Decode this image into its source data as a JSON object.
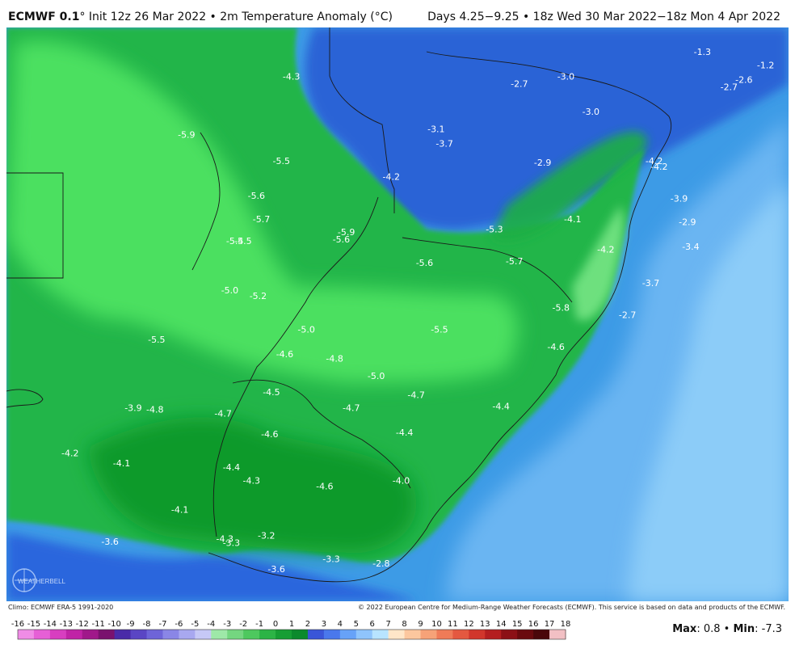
{
  "header": {
    "model": "ECMWF 0.1",
    "init": "° Init 12z 26 Mar 2022 • 2m Temperature Anomaly (°C)",
    "valid": "Days 4.25−9.25 • 18z Wed 30 Mar 2022−18z Mon 4 Apr 2022"
  },
  "footer": {
    "climo": "Climo: ECMWF ERA-5 1991-2020",
    "copyright": "© 2022 European Centre for Medium-Range Weather Forecasts (ECMWF). This service is based on data and products of the ECMWF.",
    "max_label": "Max",
    "max_value": ": 0.8 • ",
    "min_label": "Min",
    "min_value": ": -7.3"
  },
  "logo": {
    "text": "WEATHERBELL",
    "icon": "globe-icon"
  },
  "legend": {
    "ticks": [
      "-16",
      "-15",
      "-14",
      "-13",
      "-12",
      "-11",
      "-10",
      "-9",
      "-8",
      "-7",
      "-6",
      "-5",
      "-4",
      "-3",
      "-2",
      "-1",
      "0",
      "1",
      "2",
      "3",
      "4",
      "5",
      "6",
      "7",
      "8",
      "9",
      "10",
      "11",
      "12",
      "13",
      "14",
      "15",
      "16",
      "17",
      "18"
    ],
    "colors": [
      "#f08ce6",
      "#e65fd6",
      "#d83ec0",
      "#c023a6",
      "#a0188a",
      "#7a126e",
      "#4a2ba8",
      "#5a46c4",
      "#6e64d8",
      "#8a86e6",
      "#a8a8f0",
      "#c6c8f6",
      "#9ee8a8",
      "#74d680",
      "#4ec85e",
      "#2cb446",
      "#169e34",
      "#0b8a2c",
      "#3a55d8",
      "#4a78ec",
      "#67a2f8",
      "#8fc4fc",
      "#b8e4ff",
      "#ffe6c8",
      "#fcc79e",
      "#f6a278",
      "#ef7b58",
      "#e45840",
      "#d1362c",
      "#b41e20",
      "#8c1016",
      "#6a0a0e",
      "#4a070a",
      "#f2c0c4"
    ]
  },
  "map": {
    "background": "#3d9be6",
    "labels": [
      {
        "value": "-4.3",
        "lon": -58.4,
        "lat": -15.1
      },
      {
        "value": "-5.9",
        "lon": -64.7,
        "lat": -19.1
      },
      {
        "value": "-5.5",
        "lon": -59.0,
        "lat": -20.9
      },
      {
        "value": "-5.6",
        "lon": -60.5,
        "lat": -23.3
      },
      {
        "value": "-5.7",
        "lon": -60.2,
        "lat": -24.9
      },
      {
        "value": "-5.4",
        "lon": -61.8,
        "lat": -26.4
      },
      {
        "value": "-5.5",
        "lon": -61.3,
        "lat": -26.4
      },
      {
        "value": "-5.0",
        "lon": -62.1,
        "lat": -29.8
      },
      {
        "value": "-5.2",
        "lon": -60.4,
        "lat": -30.2
      },
      {
        "value": "-5.5",
        "lon": -66.5,
        "lat": -33.2
      },
      {
        "value": "-5.9",
        "lon": -55.1,
        "lat": -25.8
      },
      {
        "value": "-5.6",
        "lon": -55.4,
        "lat": -26.3
      },
      {
        "value": "-4.2",
        "lon": -52.4,
        "lat": -22.0
      },
      {
        "value": "-3.1",
        "lon": -49.7,
        "lat": -18.7
      },
      {
        "value": "-3.7",
        "lon": -49.2,
        "lat": -19.7
      },
      {
        "value": "-2.7",
        "lon": -44.7,
        "lat": -15.6
      },
      {
        "value": "-3.0",
        "lon": -41.9,
        "lat": -15.1
      },
      {
        "value": "-3.0",
        "lon": -40.4,
        "lat": -17.5
      },
      {
        "value": "-2.9",
        "lon": -43.3,
        "lat": -21.0
      },
      {
        "value": "-1.3",
        "lon": -33.7,
        "lat": -13.4
      },
      {
        "value": "-1.2",
        "lon": -29.9,
        "lat": -14.3
      },
      {
        "value": "-2.6",
        "lon": -31.2,
        "lat": -15.3
      },
      {
        "value": "-2.7",
        "lon": -32.1,
        "lat": -15.8
      },
      {
        "value": "-4.2",
        "lon": -36.6,
        "lat": -20.9
      },
      {
        "value": "-4.2",
        "lon": -36.3,
        "lat": -21.3
      },
      {
        "value": "-3.9",
        "lon": -35.1,
        "lat": -23.5
      },
      {
        "value": "-2.9",
        "lon": -34.6,
        "lat": -25.1
      },
      {
        "value": "-4.1",
        "lon": -41.5,
        "lat": -24.9
      },
      {
        "value": "-5.3",
        "lon": -46.2,
        "lat": -25.6
      },
      {
        "value": "-4.2",
        "lon": -39.5,
        "lat": -27.0
      },
      {
        "value": "-3.4",
        "lon": -34.4,
        "lat": -26.8
      },
      {
        "value": "-5.6",
        "lon": -50.4,
        "lat": -27.9
      },
      {
        "value": "-5.7",
        "lon": -45.0,
        "lat": -27.8
      },
      {
        "value": "-3.7",
        "lon": -36.8,
        "lat": -29.3
      },
      {
        "value": "-5.8",
        "lon": -42.2,
        "lat": -31.0
      },
      {
        "value": "-2.7",
        "lon": -38.2,
        "lat": -31.5
      },
      {
        "value": "-5.5",
        "lon": -49.5,
        "lat": -32.5
      },
      {
        "value": "-5.0",
        "lon": -57.5,
        "lat": -32.5
      },
      {
        "value": "-4.6",
        "lon": -42.5,
        "lat": -33.7
      },
      {
        "value": "-4.6",
        "lon": -58.8,
        "lat": -34.2
      },
      {
        "value": "-4.8",
        "lon": -55.8,
        "lat": -34.5
      },
      {
        "value": "-5.0",
        "lon": -53.3,
        "lat": -35.7
      },
      {
        "value": "-4.7",
        "lon": -50.9,
        "lat": -37.0
      },
      {
        "value": "-4.5",
        "lon": -59.6,
        "lat": -36.8
      },
      {
        "value": "-3.9",
        "lon": -67.9,
        "lat": -37.9
      },
      {
        "value": "-4.8",
        "lon": -66.6,
        "lat": -38.0
      },
      {
        "value": "-4.7",
        "lon": -62.5,
        "lat": -38.3
      },
      {
        "value": "-4.7",
        "lon": -54.8,
        "lat": -37.9
      },
      {
        "value": "-4.4",
        "lon": -45.8,
        "lat": -37.8
      },
      {
        "value": "-4.6",
        "lon": -59.7,
        "lat": -39.7
      },
      {
        "value": "-4.4",
        "lon": -51.6,
        "lat": -39.6
      },
      {
        "value": "-4.2",
        "lon": -71.7,
        "lat": -41.0
      },
      {
        "value": "-4.1",
        "lon": -68.6,
        "lat": -41.7
      },
      {
        "value": "-4.4",
        "lon": -62.0,
        "lat": -42.0
      },
      {
        "value": "-4.3",
        "lon": -60.8,
        "lat": -42.9
      },
      {
        "value": "-4.6",
        "lon": -56.4,
        "lat": -43.3
      },
      {
        "value": "-4.0",
        "lon": -51.8,
        "lat": -42.9
      },
      {
        "value": "-4.1",
        "lon": -65.1,
        "lat": -44.9
      },
      {
        "value": "-3.6",
        "lon": -69.3,
        "lat": -47.1
      },
      {
        "value": "-4.3",
        "lon": -62.4,
        "lat": -46.9
      },
      {
        "value": "-3.3",
        "lon": -62.0,
        "lat": -47.2
      },
      {
        "value": "-3.2",
        "lon": -59.9,
        "lat": -46.7
      },
      {
        "value": "-3.6",
        "lon": -59.3,
        "lat": -49.0
      },
      {
        "value": "-3.3",
        "lon": -56.0,
        "lat": -48.3
      },
      {
        "value": "-2.8",
        "lon": -53.0,
        "lat": -48.6
      }
    ]
  }
}
